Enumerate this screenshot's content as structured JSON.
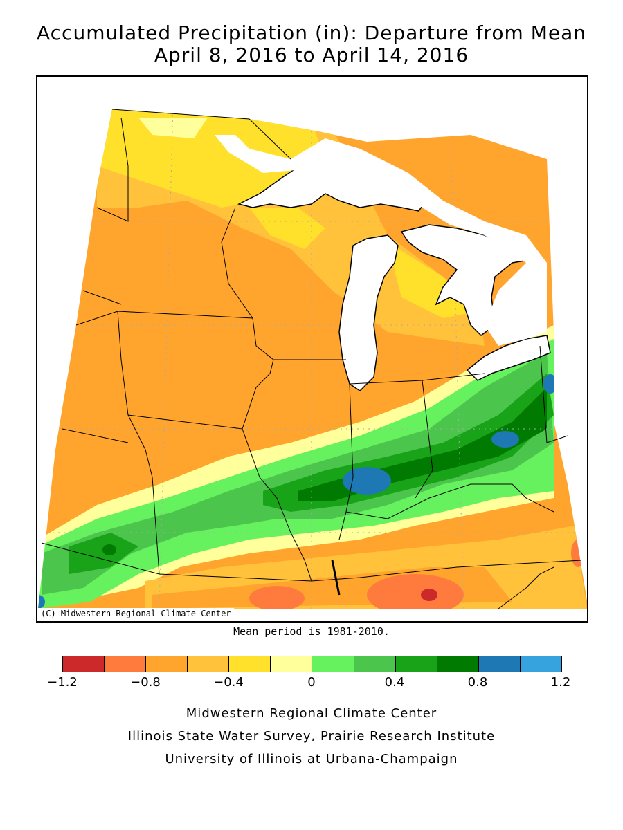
{
  "title": {
    "line1": "Accumulated Precipitation (in): Departure from Mean",
    "line2": "April 8, 2016 to April 14, 2016"
  },
  "map": {
    "copyright": "(C) Midwestern Regional Climate Center",
    "mean_note": "Mean period is 1981-2010.",
    "lake_color": "#ffffff"
  },
  "legend": {
    "colors": [
      "#cc2a2a",
      "#ff7a3d",
      "#ffa52e",
      "#ffc23a",
      "#ffe02a",
      "#ffff9c",
      "#66f25e",
      "#4cc54c",
      "#19a319",
      "#007a00",
      "#1e78b4",
      "#36a2de"
    ],
    "tick_labels": [
      "-1.2",
      "-0.8",
      "-0.4",
      "0",
      "0.4",
      "0.8",
      "1.2"
    ],
    "tick_values": [
      -1.2,
      -0.8,
      -0.4,
      0,
      0.4,
      0.8,
      1.2
    ]
  },
  "credits": {
    "line1": "Midwestern Regional Climate Center",
    "line2": "Illinois State Water Survey, Prairie Research Institute",
    "line3": "University of Illinois at Urbana-Champaign"
  }
}
